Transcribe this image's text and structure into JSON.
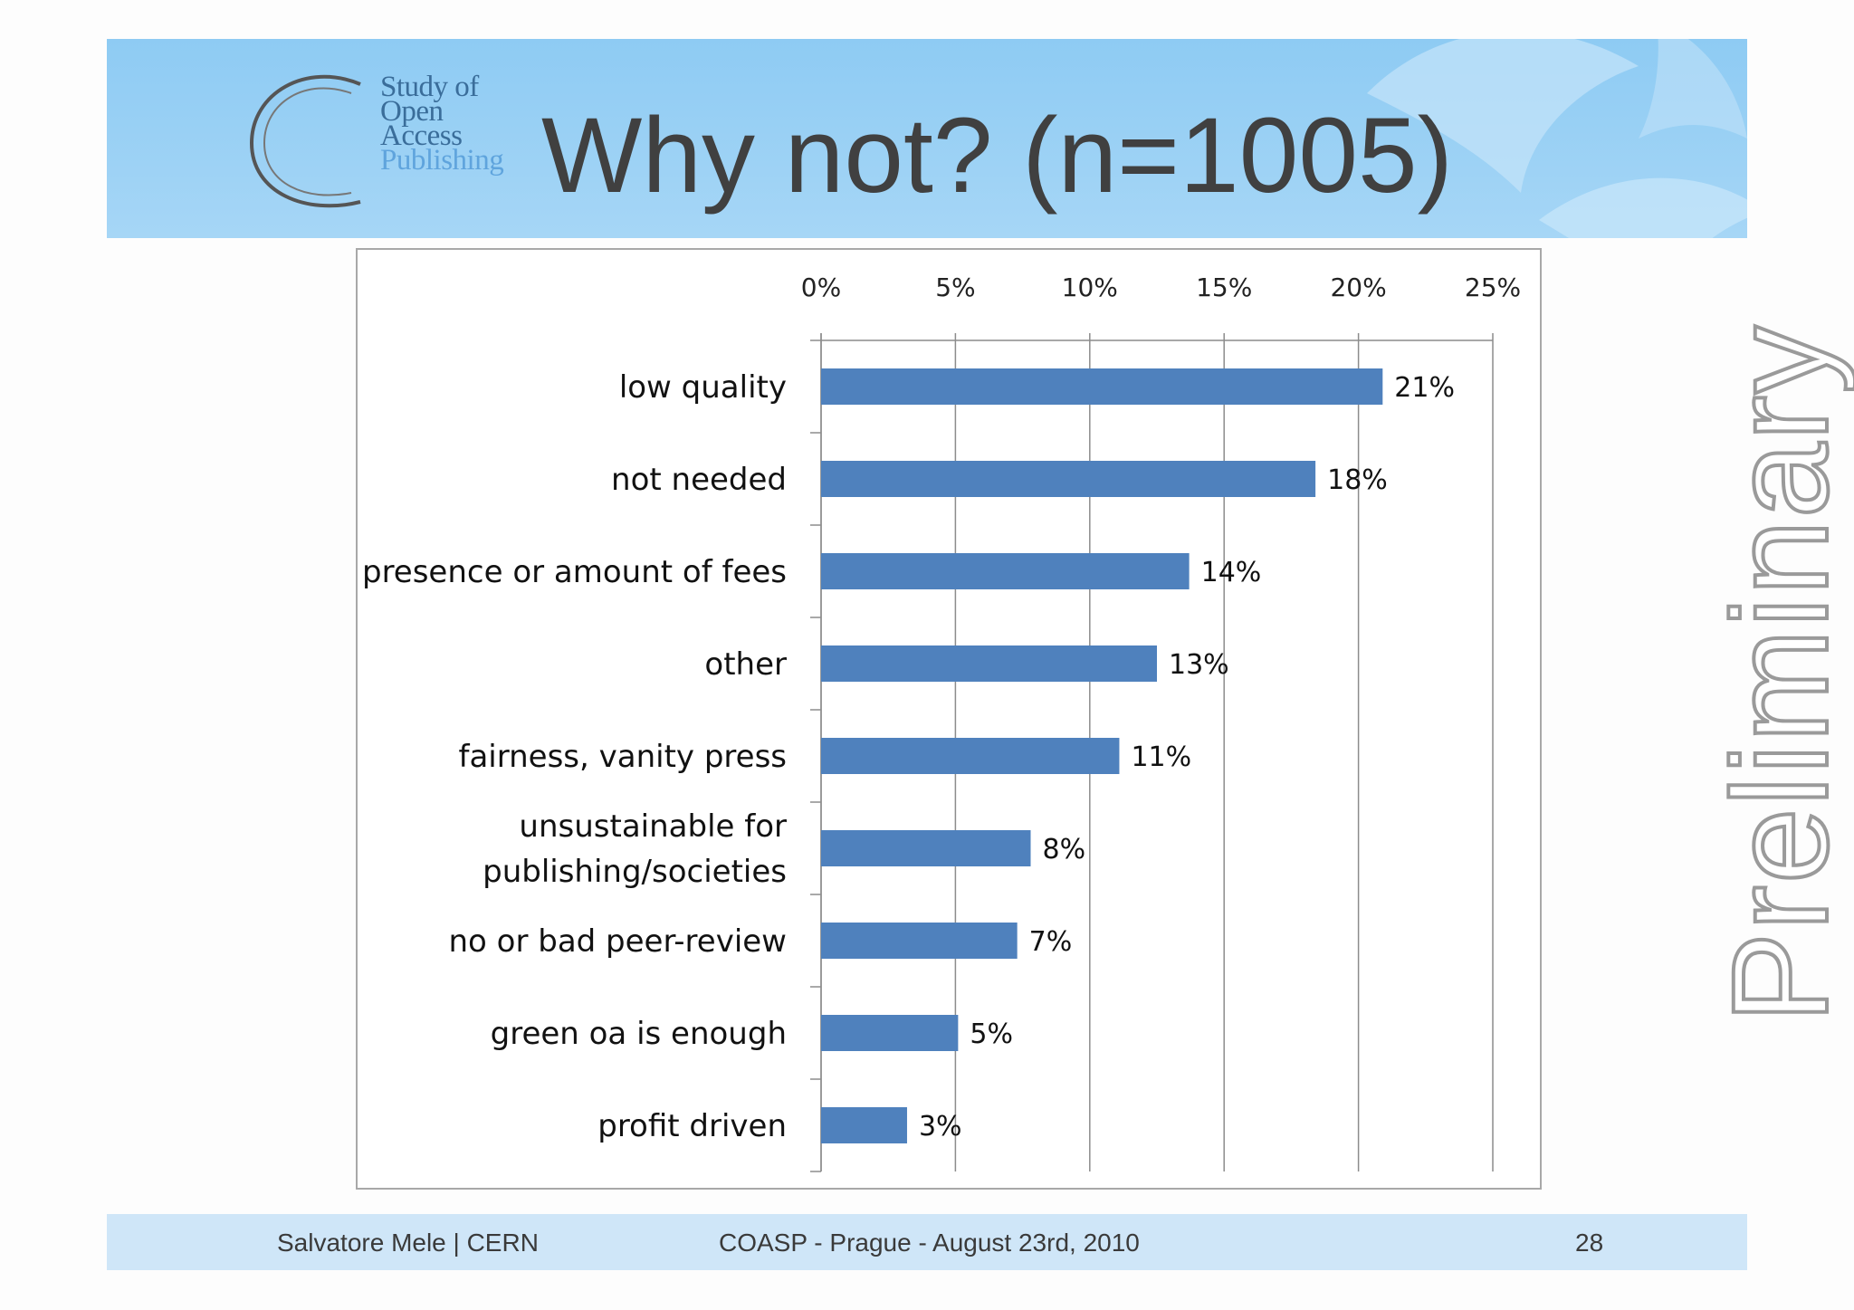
{
  "slide": {
    "title": "Why not? (n=1005)",
    "logo_lines": [
      "Study of",
      "Open",
      "Access",
      "Publishing"
    ],
    "watermark": "Preliminary"
  },
  "footer": {
    "author": "Salvatore Mele | CERN",
    "event": "COASP - Prague - August 23rd, 2010",
    "page": "28"
  },
  "colors": {
    "bar": "#4f81bd",
    "header_bg": "#a6d6f6",
    "footer_bg": "#cfe6f8"
  },
  "chart_data": {
    "type": "bar",
    "orientation": "horizontal",
    "title": "Why not? (n=1005)",
    "categories": [
      "low quality",
      "not needed",
      "presence or amount of fees",
      "other",
      "fairness, vanity press",
      "unsustainable for publishing/societies",
      "no or bad peer-review",
      "green oa is enough",
      "profit driven"
    ],
    "category_lines": [
      [
        "low quality"
      ],
      [
        "not needed"
      ],
      [
        "presence or amount of fees"
      ],
      [
        "other"
      ],
      [
        "fairness, vanity press"
      ],
      [
        "unsustainable for",
        "publishing/societies"
      ],
      [
        "no or bad peer-review"
      ],
      [
        "green oa is enough"
      ],
      [
        "profit driven"
      ]
    ],
    "values": [
      20.9,
      18.4,
      13.7,
      12.5,
      11.1,
      7.8,
      7.3,
      5.1,
      3.2
    ],
    "data_labels": [
      "21%",
      "18%",
      "14%",
      "13%",
      "11%",
      "8%",
      "7%",
      "5%",
      "3%"
    ],
    "xlim": [
      0,
      25
    ],
    "xticks": [
      0,
      5,
      10,
      15,
      20,
      25
    ],
    "xtick_labels": [
      "0%",
      "5%",
      "10%",
      "15%",
      "20%",
      "25%"
    ],
    "xaxis_position": "top",
    "grid": true,
    "legend": "none"
  }
}
